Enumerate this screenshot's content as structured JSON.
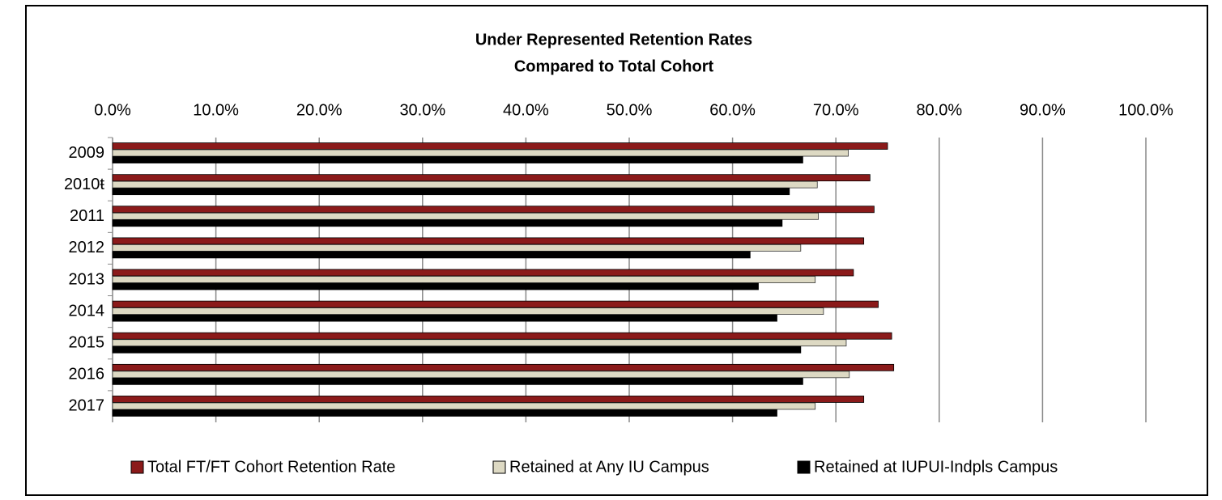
{
  "chart_data": {
    "type": "hbar",
    "title": [
      "Under Represented Retention Rates",
      "Compared to Total Cohort"
    ],
    "categories": [
      "2009",
      "2010ŧ",
      "2011",
      "2012",
      "2013",
      "2014",
      "2015",
      "2016",
      "2017"
    ],
    "series": [
      {
        "name": "Total FT/FT Cohort Retention Rate",
        "color": "#8b1a1a",
        "values": [
          75.0,
          73.3,
          73.7,
          72.7,
          71.7,
          74.1,
          75.4,
          75.6,
          72.7
        ]
      },
      {
        "name": "Retained at Any IU Campus",
        "color": "#ddd9c3",
        "values": [
          71.2,
          68.2,
          68.3,
          66.6,
          68.0,
          68.8,
          71.0,
          71.3,
          68.0
        ]
      },
      {
        "name": "Retained at IUPUI-Indpls Campus",
        "color": "#000000",
        "values": [
          66.8,
          65.5,
          64.8,
          61.7,
          62.5,
          64.3,
          66.6,
          66.8,
          64.3
        ]
      }
    ],
    "xlim": [
      0,
      100
    ],
    "xticks": [
      {
        "value": 0,
        "label": "0.0%"
      },
      {
        "value": 10,
        "label": "10.0%"
      },
      {
        "value": 20,
        "label": "20.0%"
      },
      {
        "value": 30,
        "label": "30.0%"
      },
      {
        "value": 40,
        "label": "40.0%"
      },
      {
        "value": 50,
        "label": "50.0%"
      },
      {
        "value": 60,
        "label": "60.0%"
      },
      {
        "value": 70,
        "label": "70.0%"
      },
      {
        "value": 80,
        "label": "80.0%"
      },
      {
        "value": 90,
        "label": "90.0%"
      },
      {
        "value": 100,
        "label": "100.0%"
      }
    ],
    "grid": true,
    "legend": "bottom"
  }
}
